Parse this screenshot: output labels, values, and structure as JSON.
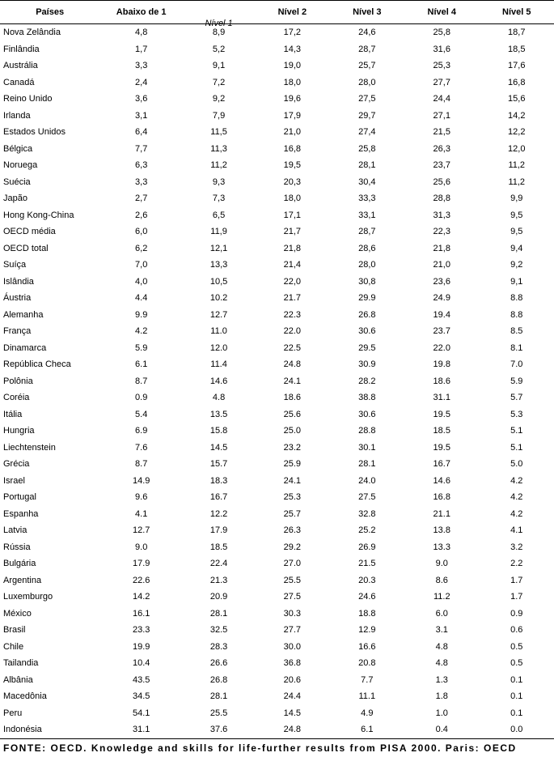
{
  "headers": {
    "paises": "Países",
    "abaixo": "Abaixo de 1",
    "nivel1_italic": "Nível 1",
    "nivel2": "Nível 2",
    "nivel3": "Nível 3",
    "nivel4": "Nível 4",
    "nivel5": "Nível 5"
  },
  "rows": [
    {
      "pais": "Nova Zelândia",
      "v": [
        "4,8",
        "8,9",
        "17,2",
        "24,6",
        "25,8",
        "18,7"
      ]
    },
    {
      "pais": "Finlândia",
      "v": [
        "1,7",
        "5,2",
        "14,3",
        "28,7",
        "31,6",
        "18,5"
      ]
    },
    {
      "pais": "Austrália",
      "v": [
        "3,3",
        "9,1",
        "19,0",
        "25,7",
        "25,3",
        "17,6"
      ]
    },
    {
      "pais": "Canadá",
      "v": [
        "2,4",
        "7,2",
        "18,0",
        "28,0",
        "27,7",
        "16,8"
      ]
    },
    {
      "pais": "Reino Unido",
      "v": [
        "3,6",
        "9,2",
        "19,6",
        "27,5",
        "24,4",
        "15,6"
      ]
    },
    {
      "pais": "Irlanda",
      "v": [
        "3,1",
        "7,9",
        "17,9",
        "29,7",
        "27,1",
        "14,2"
      ]
    },
    {
      "pais": "Estados Unidos",
      "v": [
        "6,4",
        "11,5",
        "21,0",
        "27,4",
        "21,5",
        "12,2"
      ]
    },
    {
      "pais": "Bélgica",
      "v": [
        "7,7",
        "11,3",
        "16,8",
        "25,8",
        "26,3",
        "12,0"
      ]
    },
    {
      "pais": "Noruega",
      "v": [
        "6,3",
        "11,2",
        "19,5",
        "28,1",
        "23,7",
        "11,2"
      ]
    },
    {
      "pais": "Suécia",
      "v": [
        "3,3",
        "9,3",
        "20,3",
        "30,4",
        "25,6",
        "11,2"
      ]
    },
    {
      "pais": "Japão",
      "v": [
        "2,7",
        "7,3",
        "18,0",
        "33,3",
        "28,8",
        "9,9"
      ]
    },
    {
      "pais": "Hong Kong-China",
      "v": [
        "2,6",
        "6,5",
        "17,1",
        "33,1",
        "31,3",
        "9,5"
      ]
    },
    {
      "pais": "OECD média",
      "v": [
        "6,0",
        "11,9",
        "21,7",
        "28,7",
        "22,3",
        "9,5"
      ]
    },
    {
      "pais": "OECD total",
      "v": [
        "6,2",
        "12,1",
        "21,8",
        "28,6",
        "21,8",
        "9,4"
      ]
    },
    {
      "pais": "Suíça",
      "v": [
        "7,0",
        "13,3",
        "21,4",
        "28,0",
        "21,0",
        "9,2"
      ]
    },
    {
      "pais": "Islândia",
      "v": [
        "4,0",
        "10,5",
        "22,0",
        "30,8",
        "23,6",
        "9,1"
      ]
    },
    {
      "pais": "Áustria",
      "v": [
        "4.4",
        "10.2",
        "21.7",
        "29.9",
        "24.9",
        "8.8"
      ]
    },
    {
      "pais": "Alemanha",
      "v": [
        "9.9",
        "12.7",
        "22.3",
        "26.8",
        "19.4",
        "8.8"
      ]
    },
    {
      "pais": "França",
      "v": [
        "4.2",
        "11.0",
        "22.0",
        "30.6",
        "23.7",
        "8.5"
      ]
    },
    {
      "pais": "Dinamarca",
      "v": [
        "5.9",
        "12.0",
        "22.5",
        "29.5",
        "22.0",
        "8.1"
      ]
    },
    {
      "pais": "República Checa",
      "v": [
        "6.1",
        "11.4",
        "24.8",
        "30.9",
        "19.8",
        "7.0"
      ]
    },
    {
      "pais": "Polônia",
      "v": [
        "8.7",
        "14.6",
        "24.1",
        "28.2",
        "18.6",
        "5.9"
      ]
    },
    {
      "pais": "Coréia",
      "v": [
        "0.9",
        "4.8",
        "18.6",
        "38.8",
        "31.1",
        "5.7"
      ]
    },
    {
      "pais": "Itália",
      "v": [
        "5.4",
        "13.5",
        "25.6",
        "30.6",
        "19.5",
        "5.3"
      ]
    },
    {
      "pais": "Hungria",
      "v": [
        "6.9",
        "15.8",
        "25.0",
        "28.8",
        "18.5",
        "5.1"
      ]
    },
    {
      "pais": "Liechtenstein",
      "v": [
        "7.6",
        "14.5",
        "23.2",
        "30.1",
        "19.5",
        "5.1"
      ]
    },
    {
      "pais": "Grécia",
      "v": [
        "8.7",
        "15.7",
        "25.9",
        "28.1",
        "16.7",
        "5.0"
      ]
    },
    {
      "pais": "Israel",
      "v": [
        "14.9",
        "18.3",
        "24.1",
        "24.0",
        "14.6",
        "4.2"
      ]
    },
    {
      "pais": "Portugal",
      "v": [
        "9.6",
        "16.7",
        "25.3",
        "27.5",
        "16.8",
        "4.2"
      ]
    },
    {
      "pais": "Espanha",
      "v": [
        "4.1",
        "12.2",
        "25.7",
        "32.8",
        "21.1",
        "4.2"
      ]
    },
    {
      "pais": "Latvia",
      "v": [
        "12.7",
        "17.9",
        "26.3",
        "25.2",
        "13.8",
        "4.1"
      ]
    },
    {
      "pais": "Rússia",
      "v": [
        "9.0",
        "18.5",
        "29.2",
        "26.9",
        "13.3",
        "3.2"
      ]
    },
    {
      "pais": "Bulgária",
      "v": [
        "17.9",
        "22.4",
        "27.0",
        "21.5",
        "9.0",
        "2.2"
      ]
    },
    {
      "pais": "Argentina",
      "v": [
        "22.6",
        "21.3",
        "25.5",
        "20.3",
        "8.6",
        "1.7"
      ]
    },
    {
      "pais": "Luxemburgo",
      "v": [
        "14.2",
        "20.9",
        "27.5",
        "24.6",
        "11.2",
        "1.7"
      ]
    },
    {
      "pais": "México",
      "v": [
        "16.1",
        "28.1",
        "30.3",
        "18.8",
        "6.0",
        "0.9"
      ]
    },
    {
      "pais": "Brasil",
      "v": [
        "23.3",
        "32.5",
        "27.7",
        "12.9",
        "3.1",
        "0.6"
      ]
    },
    {
      "pais": "Chile",
      "v": [
        "19.9",
        "28.3",
        "30.0",
        "16.6",
        "4.8",
        "0.5"
      ]
    },
    {
      "pais": "Tailandia",
      "v": [
        "10.4",
        "26.6",
        "36.8",
        "20.8",
        "4.8",
        "0.5"
      ]
    },
    {
      "pais": "Albânia",
      "v": [
        "43.5",
        "26.8",
        "20.6",
        "7.7",
        "1.3",
        "0.1"
      ]
    },
    {
      "pais": "Macedônia",
      "v": [
        "34.5",
        "28.1",
        "24.4",
        "11.1",
        "1.8",
        "0.1"
      ]
    },
    {
      "pais": "Peru",
      "v": [
        "54.1",
        "25.5",
        "14.5",
        "4.9",
        "1.0",
        "0.1"
      ]
    },
    {
      "pais": "Indonésia",
      "v": [
        "31.1",
        "37.6",
        "24.8",
        "6.1",
        "0.4",
        "0.0"
      ]
    }
  ],
  "footer": "FONTE: OECD. Knowledge and skills for life-further results from PISA 2000. Paris: OECD"
}
